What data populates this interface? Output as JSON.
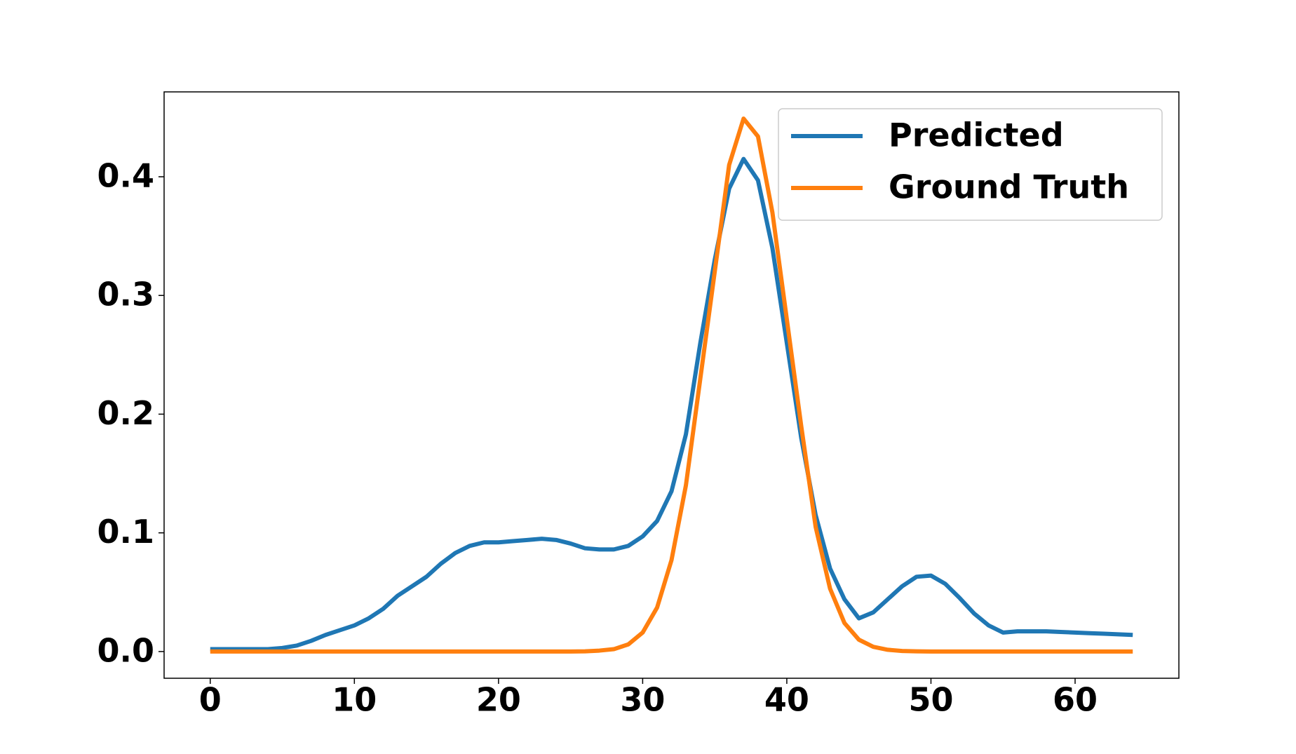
{
  "chart_data": {
    "type": "line",
    "x": [
      0,
      1,
      2,
      3,
      4,
      5,
      6,
      7,
      8,
      9,
      10,
      11,
      12,
      13,
      14,
      15,
      16,
      17,
      18,
      19,
      20,
      21,
      22,
      23,
      24,
      25,
      26,
      27,
      28,
      29,
      30,
      31,
      32,
      33,
      34,
      35,
      36,
      37,
      38,
      39,
      40,
      41,
      42,
      43,
      44,
      45,
      46,
      47,
      48,
      49,
      50,
      51,
      52,
      53,
      54,
      55,
      56,
      57,
      58,
      59,
      60,
      61,
      62,
      63,
      64
    ],
    "series": [
      {
        "name": "Predicted",
        "color": "#1f77b4",
        "values": [
          0.002,
          0.002,
          0.002,
          0.002,
          0.002,
          0.003,
          0.005,
          0.009,
          0.014,
          0.018,
          0.022,
          0.028,
          0.036,
          0.047,
          0.055,
          0.063,
          0.074,
          0.083,
          0.089,
          0.092,
          0.092,
          0.093,
          0.094,
          0.095,
          0.094,
          0.091,
          0.087,
          0.086,
          0.086,
          0.089,
          0.097,
          0.11,
          0.135,
          0.183,
          0.26,
          0.33,
          0.39,
          0.415,
          0.397,
          0.34,
          0.26,
          0.18,
          0.115,
          0.07,
          0.044,
          0.028,
          0.033,
          0.044,
          0.055,
          0.063,
          0.064,
          0.057,
          0.045,
          0.032,
          0.022,
          0.016,
          0.017,
          0.017,
          0.017,
          0.0165,
          0.016,
          0.0155,
          0.015,
          0.0145,
          0.014
        ]
      },
      {
        "name": "Ground Truth",
        "color": "#ff7f0e",
        "values": [
          0,
          0,
          0,
          0,
          0,
          0,
          0,
          0,
          0,
          0,
          0,
          0,
          0,
          0,
          0,
          0,
          0,
          0,
          0,
          0,
          0,
          0,
          0,
          0,
          0,
          0,
          0.0002,
          0.0008,
          0.002,
          0.006,
          0.016,
          0.037,
          0.077,
          0.14,
          0.23,
          0.32,
          0.41,
          0.449,
          0.434,
          0.37,
          0.28,
          0.19,
          0.105,
          0.053,
          0.024,
          0.01,
          0.004,
          0.0015,
          0.0005,
          0.0002,
          0,
          0,
          0,
          0,
          0,
          0,
          0,
          0,
          0,
          0,
          0,
          0,
          0,
          0,
          0
        ]
      }
    ],
    "xlim": [
      -3.2,
      67.2
    ],
    "ylim": [
      -0.0225,
      0.4715
    ],
    "xticks": [
      0,
      10,
      20,
      30,
      40,
      50,
      60
    ],
    "yticks": [
      {
        "value": 0,
        "label": "0.0"
      },
      0.1,
      0.2,
      0.3,
      0.4
    ],
    "legend": "upper right"
  }
}
